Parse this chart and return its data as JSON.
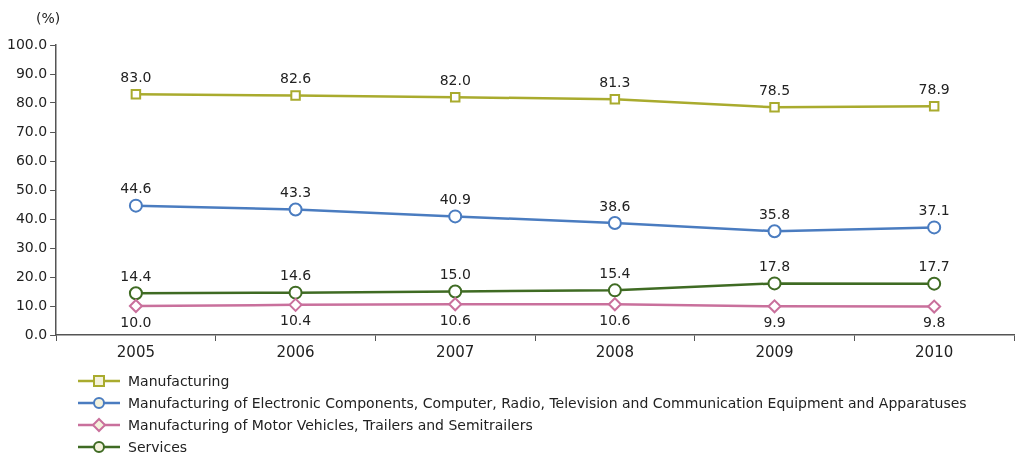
{
  "chart_data": {
    "type": "line",
    "ylabel": "(%)",
    "categories": [
      "2005",
      "2006",
      "2007",
      "2008",
      "2009",
      "2010"
    ],
    "series": [
      {
        "name": "Manufacturing",
        "color": "#a9ab2e",
        "marker": "square",
        "values": [
          83.0,
          82.6,
          82.0,
          81.3,
          78.5,
          78.9
        ],
        "value_labels": [
          "83.0",
          "82.6",
          "82.0",
          "81.3",
          "78.5",
          "78.9"
        ]
      },
      {
        "name": "Manufacturing of Electronic Components, Computer, Radio, Television and Communication Equipment and Apparatuses",
        "color": "#4a7cc0",
        "marker": "circle",
        "values": [
          44.6,
          43.3,
          40.9,
          38.6,
          35.8,
          37.1
        ],
        "value_labels": [
          "44.6",
          "43.3",
          "40.9",
          "38.6",
          "35.8",
          "37.1"
        ]
      },
      {
        "name": "Manufacturing of Motor Vehicles, Trailers and Semitrailers",
        "color": "#c9709c",
        "marker": "diamond",
        "values": [
          10.0,
          10.4,
          10.6,
          10.6,
          9.9,
          9.8
        ],
        "value_labels": [
          "10.0",
          "10.4",
          "10.6",
          "10.6",
          "9.9",
          "9.8"
        ]
      },
      {
        "name": "Services",
        "color": "#3f6b23",
        "marker": "circle",
        "values": [
          14.4,
          14.6,
          15.0,
          15.4,
          17.8,
          17.7
        ],
        "value_labels": [
          "14.4",
          "14.6",
          "15.0",
          "15.4",
          "17.8",
          "17.7"
        ]
      }
    ],
    "ylim": [
      0,
      100
    ],
    "yticks": [
      {
        "value": 0,
        "label": "0.0"
      },
      {
        "value": 10,
        "label": "10.0"
      },
      {
        "value": 20,
        "label": "20.0"
      },
      {
        "value": 30,
        "label": "30.0"
      },
      {
        "value": 40,
        "label": "40.0"
      },
      {
        "value": 50,
        "label": "50.0"
      },
      {
        "value": 60,
        "label": "60.0"
      },
      {
        "value": 70,
        "label": "70.0"
      },
      {
        "value": 80,
        "label": "80.0"
      },
      {
        "value": 90,
        "label": "90.0"
      },
      {
        "value": 100,
        "label": "100.0"
      }
    ],
    "grid": false,
    "legend": "bottom left",
    "line_style": "solid"
  }
}
